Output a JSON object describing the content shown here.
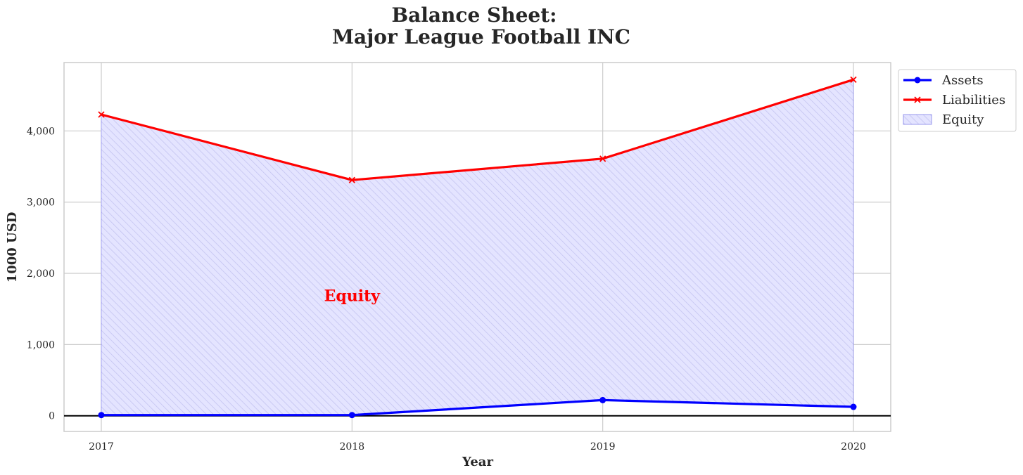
{
  "chart_data": {
    "type": "line",
    "title_line1": "Balance Sheet:",
    "title_line2": "Major League Football INC",
    "xlabel": "Year",
    "ylabel": "1000 USD",
    "x": [
      2017,
      2018,
      2019,
      2020
    ],
    "xticks": [
      "2017",
      "2018",
      "2019",
      "2020"
    ],
    "ylim": [
      -220,
      4960
    ],
    "yticks": [
      0,
      1000,
      2000,
      3000,
      4000
    ],
    "ytick_labels": [
      "0",
      "1,000",
      "2,000",
      "3,000",
      "4,000"
    ],
    "series": [
      {
        "name": "Assets",
        "values": [
          10,
          10,
          220,
          125
        ],
        "color": "#0000ff",
        "marker": "circle"
      },
      {
        "name": "Liabilities",
        "values": [
          4230,
          3310,
          3610,
          4720
        ],
        "color": "#ff0000",
        "marker": "x"
      }
    ],
    "fill": {
      "name": "Equity",
      "between": [
        "Assets",
        "Liabilities"
      ],
      "color": "#0000ff",
      "hatch": "diagonal"
    },
    "annotation": {
      "text": "Equity",
      "x": 2018,
      "y": 1680,
      "color": "#ff0000"
    },
    "legend": {
      "placement": "outside-top-right",
      "entries": [
        "Assets",
        "Liabilities",
        "Equity"
      ]
    },
    "grid": true,
    "zero_line": true
  }
}
